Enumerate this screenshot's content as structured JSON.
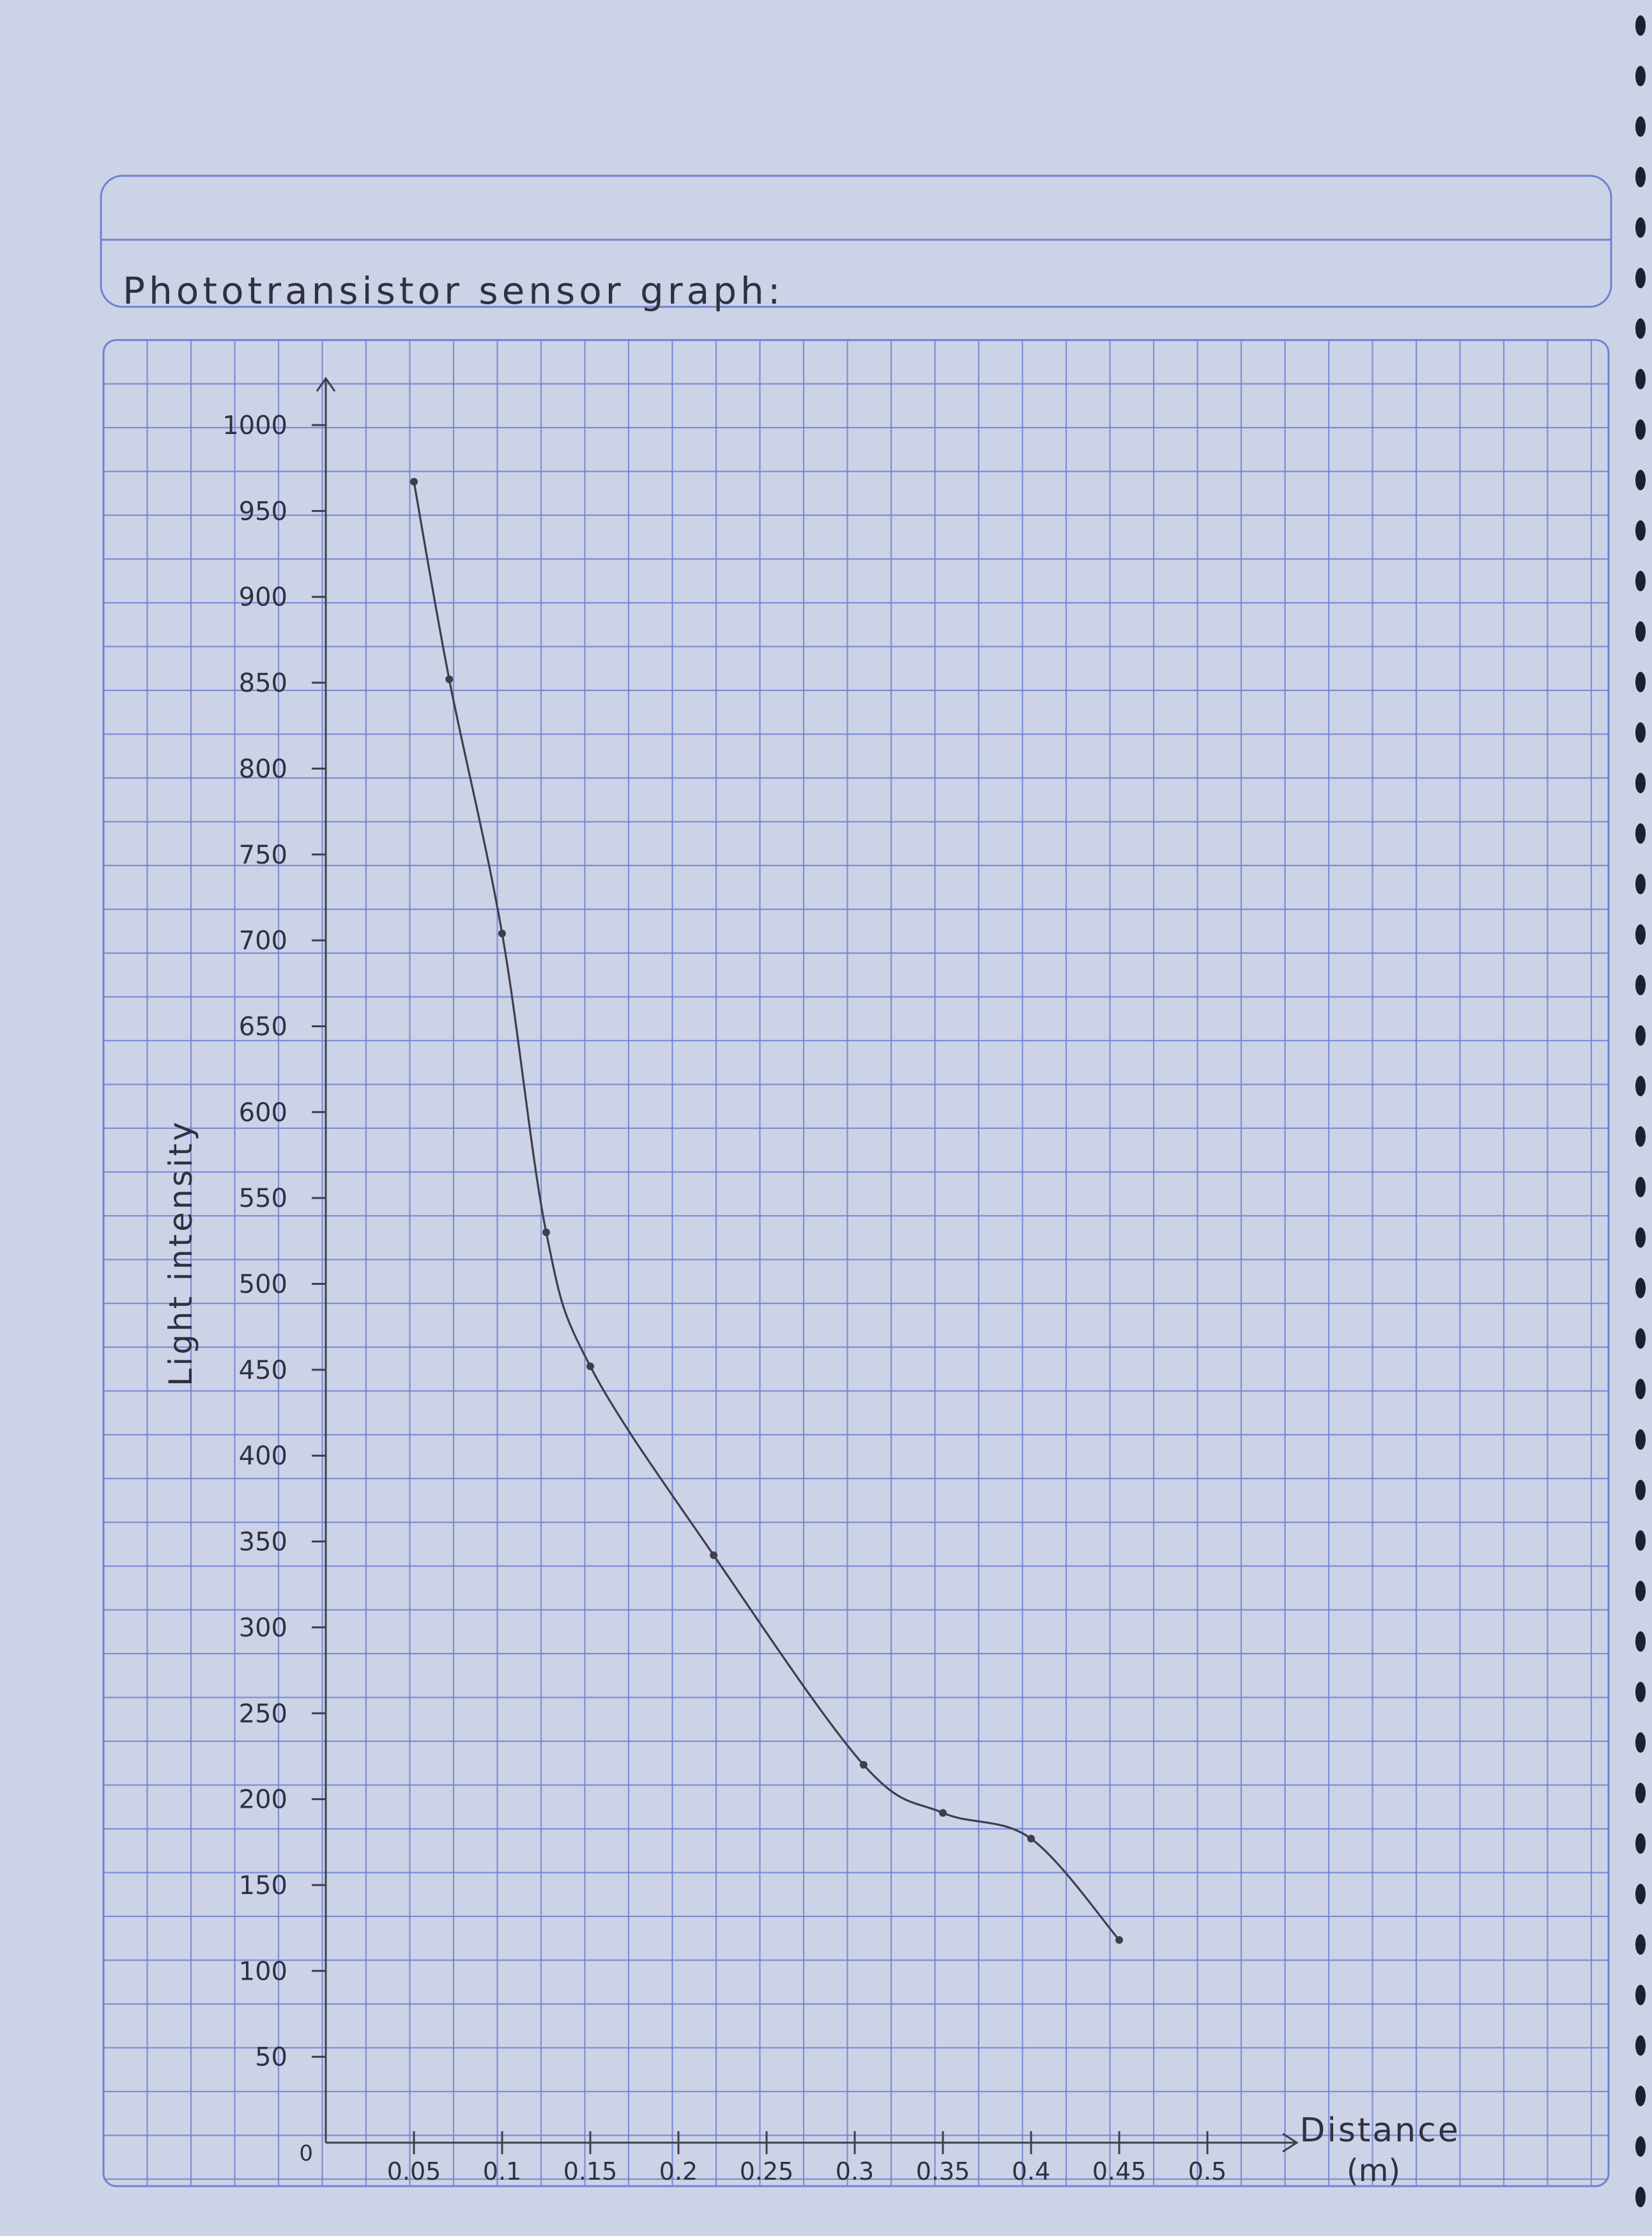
{
  "page": {
    "title": "Phototransistor sensor graph:"
  },
  "colors": {
    "paper": "#cdd3e6",
    "grid": "#6f82d3",
    "pencil": "#3d3f4c"
  },
  "chart_data": {
    "type": "line",
    "title": "Phototransistor sensor graph:",
    "xlabel": "Distance (m)",
    "ylabel": "Light intensity",
    "origin_label": "0",
    "xlim": [
      0,
      0.55
    ],
    "ylim": [
      0,
      1000
    ],
    "x_ticks": [
      "0.05",
      "0.1",
      "0.15",
      "0.2",
      "0.25",
      "0.3",
      "0.35",
      "0.4",
      "0.45",
      "0.5"
    ],
    "y_ticks": [
      "50",
      "100",
      "150",
      "200",
      "250",
      "300",
      "350",
      "400",
      "450",
      "500",
      "550",
      "600",
      "650",
      "700",
      "750",
      "800",
      "850",
      "900",
      "950",
      "1000"
    ],
    "grid": true,
    "series": [
      {
        "x": [
          0.05,
          0.07,
          0.1,
          0.125,
          0.15,
          0.22,
          0.305,
          0.35,
          0.4,
          0.45
        ],
        "y": [
          967,
          852,
          704,
          530,
          452,
          342,
          220,
          192,
          177,
          118
        ]
      }
    ]
  }
}
